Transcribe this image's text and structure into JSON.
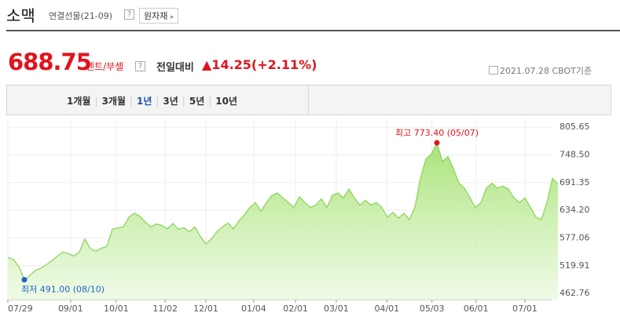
{
  "header": {
    "title": "소맥",
    "subtitle": "연결선물(21-09)",
    "help": "?",
    "category_button": "원자재"
  },
  "quote": {
    "price": "688.75",
    "unit": "센트/부셸",
    "help": "?",
    "change_label": "전일대비",
    "change": "▲14.25(+2.11%)",
    "date": "2021.07.28 CBOT기준"
  },
  "tabs": {
    "items": [
      "1개월",
      "3개월",
      "1년",
      "3년",
      "5년",
      "10년"
    ],
    "selected": 2
  },
  "chart_data": {
    "type": "area",
    "series": [
      {
        "name": "소맥",
        "color": "#8fd45e",
        "values": [
          537,
          533,
          518,
          491,
          500,
          510,
          515,
          522,
          530,
          540,
          548,
          545,
          540,
          548,
          575,
          555,
          550,
          556,
          560,
          595,
          598,
          600,
          620,
          628,
          622,
          610,
          600,
          606,
          603,
          596,
          607,
          595,
          598,
          590,
          600,
          580,
          565,
          575,
          590,
          600,
          608,
          596,
          612,
          625,
          640,
          650,
          632,
          650,
          665,
          670,
          660,
          650,
          640,
          662,
          650,
          640,
          645,
          658,
          640,
          665,
          670,
          660,
          678,
          660,
          645,
          655,
          645,
          650,
          640,
          620,
          630,
          618,
          628,
          615,
          640,
          700,
          740,
          750,
          773.4,
          735,
          745,
          720,
          690,
          680,
          660,
          640,
          650,
          680,
          690,
          680,
          684,
          678,
          660,
          650,
          660,
          640,
          620,
          615,
          650,
          700,
          688.75
        ]
      }
    ],
    "xlim": [
      0,
      100
    ],
    "xticks": [
      {
        "value": 0,
        "label": "07/29"
      },
      {
        "value": 11.4,
        "label": "09/01"
      },
      {
        "value": 19.7,
        "label": "10/01"
      },
      {
        "value": 28.6,
        "label": "11/02"
      },
      {
        "value": 36,
        "label": "12/01"
      },
      {
        "value": 44.7,
        "label": "01/04"
      },
      {
        "value": 52.3,
        "label": "02/01"
      },
      {
        "value": 59.7,
        "label": "03/01"
      },
      {
        "value": 68.9,
        "label": "04/01"
      },
      {
        "value": 77.1,
        "label": "05/03"
      },
      {
        "value": 85.1,
        "label": "06/01"
      },
      {
        "value": 94,
        "label": "07/01"
      }
    ],
    "ylim": [
      450,
      822
    ],
    "yticks": [
      805.65,
      {
        "value": 748.5,
        "label": "748.50"
      },
      691.35,
      {
        "value": 634.2,
        "label": "634.20"
      },
      577.06,
      519.91,
      462.76
    ],
    "grid": true,
    "annotations": [
      {
        "text": "최고 773.40 (05/07)",
        "index": 78,
        "color": "#e0141e"
      },
      {
        "text": "최저 491.00 (08/10)",
        "index": 3,
        "color": "#1e64c8"
      }
    ]
  }
}
